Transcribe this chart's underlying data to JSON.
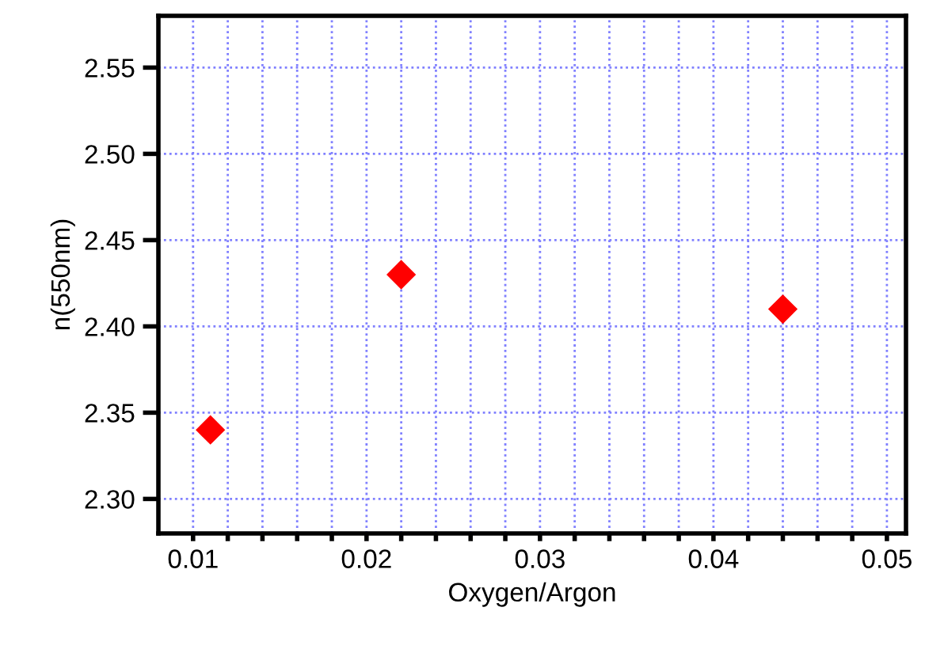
{
  "chart_data": {
    "type": "scatter",
    "xlabel": "Oxygen/Argon",
    "ylabel": "n(550nm)",
    "x": [
      0.011,
      0.022,
      0.044
    ],
    "series": [
      {
        "color": "#ff0000",
        "values": [
          2.34,
          2.43,
          2.41
        ]
      }
    ],
    "marker": "diamond",
    "xlim": [
      0.008,
      0.0511
    ],
    "ylim": [
      2.28,
      2.58
    ],
    "xticks": [
      0.01,
      {
        "value": 0.012,
        "label": null
      },
      {
        "value": 0.014,
        "label": null
      },
      {
        "value": 0.016,
        "label": null
      },
      {
        "value": 0.018,
        "label": null
      },
      0.02,
      {
        "value": 0.022,
        "label": null
      },
      {
        "value": 0.024,
        "label": null
      },
      {
        "value": 0.026,
        "label": null
      },
      {
        "value": 0.028,
        "label": null
      },
      0.03,
      {
        "value": 0.032,
        "label": null
      },
      {
        "value": 0.034,
        "label": null
      },
      {
        "value": 0.036,
        "label": null
      },
      {
        "value": 0.038,
        "label": null
      },
      0.04,
      {
        "value": 0.042,
        "label": null
      },
      {
        "value": 0.044,
        "label": null
      },
      {
        "value": 0.046,
        "label": null
      },
      {
        "value": 0.048,
        "label": null
      },
      0.05
    ],
    "yticks": [
      {
        "value": 2.3,
        "label": "2.30"
      },
      {
        "value": 2.35,
        "label": "2.35"
      },
      {
        "value": 2.4,
        "label": "2.40"
      },
      {
        "value": 2.45,
        "label": "2.45"
      },
      {
        "value": 2.5,
        "label": "2.50"
      },
      {
        "value": 2.55,
        "label": "2.55"
      }
    ],
    "grid": true
  }
}
